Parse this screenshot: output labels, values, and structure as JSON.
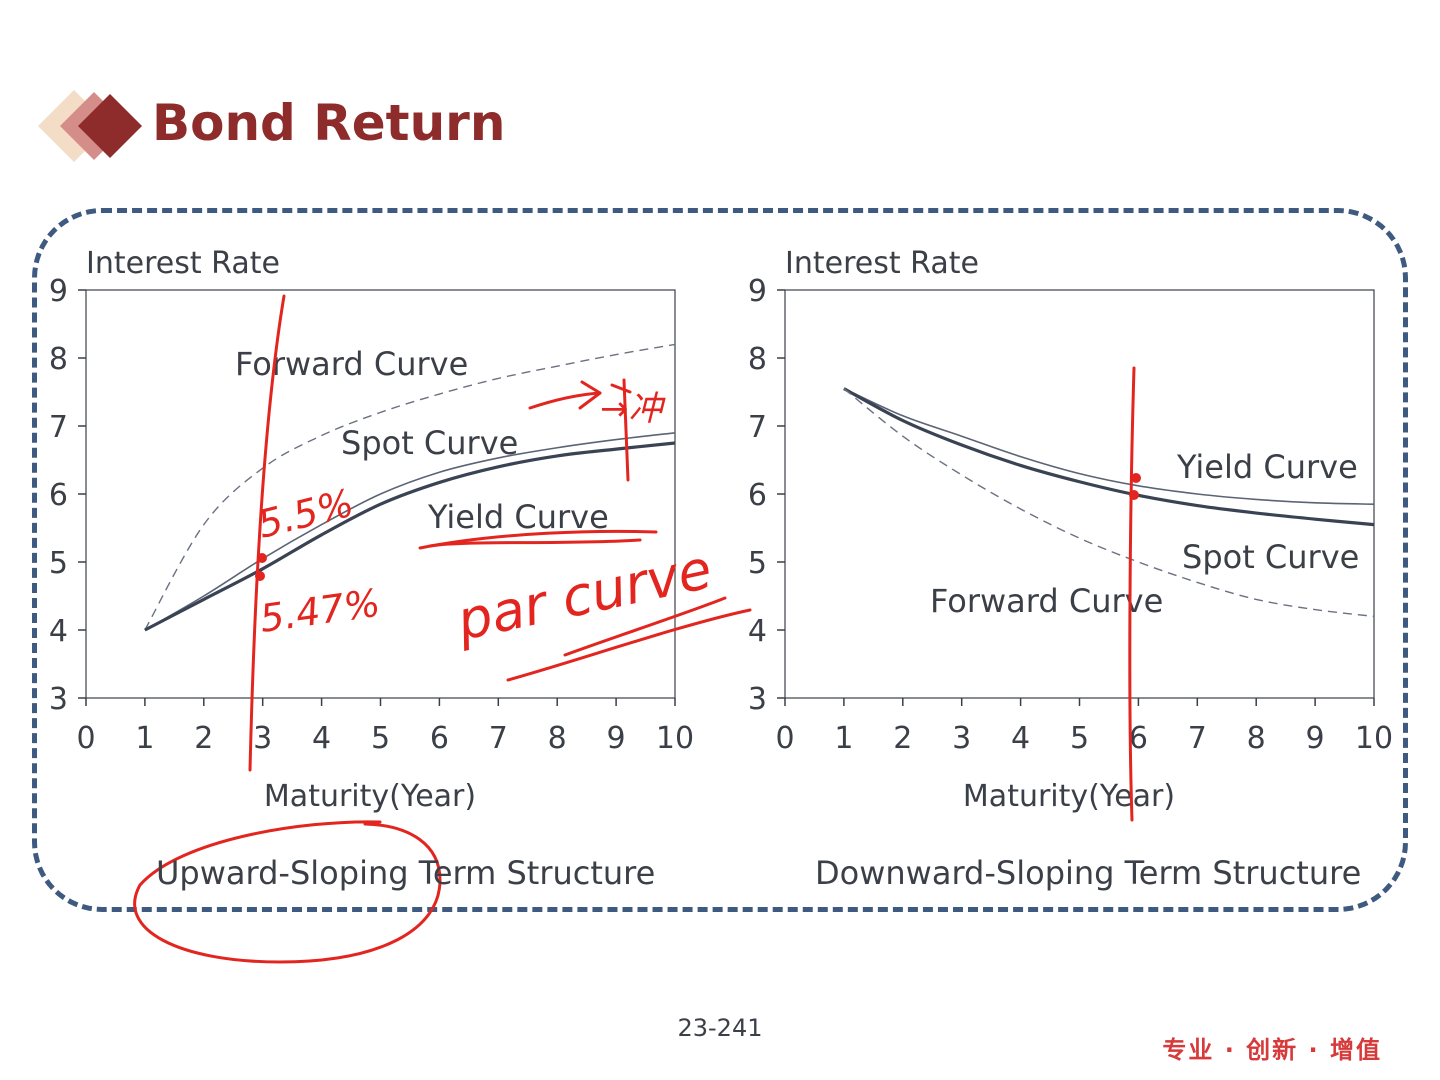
{
  "slide": {
    "title": "Bond Return",
    "page_number": "23-241",
    "slogan": "专业 · 创新 · 增值",
    "brand_color": "#8e2b2b",
    "frame_color": "#3e5a80"
  },
  "chart_data": [
    {
      "type": "line",
      "subtitle": "Upward-Sloping Term Structure",
      "xlabel": "Maturity(Year)",
      "ylabel": "Interest Rate",
      "xlim": [
        0,
        10
      ],
      "ylim": [
        3,
        9
      ],
      "x_ticks": [
        "0",
        "1",
        "2",
        "3",
        "4",
        "5",
        "6",
        "7",
        "8",
        "9",
        "10"
      ],
      "y_ticks": [
        "3",
        "4",
        "5",
        "6",
        "7",
        "8",
        "9"
      ],
      "grid": false,
      "series": [
        {
          "name": "Forward Curve",
          "style": "dashed",
          "x": [
            1,
            2,
            3,
            4,
            5,
            6,
            7,
            8,
            9,
            10
          ],
          "y": [
            4.0,
            5.55,
            6.38,
            6.86,
            7.2,
            7.47,
            7.7,
            7.88,
            8.05,
            8.2
          ]
        },
        {
          "name": "Spot Curve",
          "style": "thin",
          "x": [
            1,
            2,
            3,
            4,
            5,
            6,
            7,
            8,
            9,
            10
          ],
          "y": [
            4.0,
            4.5,
            5.05,
            5.55,
            6.0,
            6.32,
            6.53,
            6.68,
            6.8,
            6.9
          ]
        },
        {
          "name": "Yield Curve",
          "style": "thick",
          "x": [
            1,
            2,
            3,
            4,
            5,
            6,
            7,
            8,
            9,
            10
          ],
          "y": [
            4.0,
            4.45,
            4.9,
            5.4,
            5.85,
            6.17,
            6.4,
            6.56,
            6.66,
            6.75
          ]
        }
      ],
      "annotations": [
        "5.5%",
        "5.47%",
        "par curve",
        "→冲"
      ]
    },
    {
      "type": "line",
      "subtitle": "Downward-Sloping Term Structure",
      "xlabel": "Maturity(Year)",
      "ylabel": "Interest Rate",
      "xlim": [
        0,
        10
      ],
      "ylim": [
        3,
        9
      ],
      "x_ticks": [
        "0",
        "1",
        "2",
        "3",
        "4",
        "5",
        "6",
        "7",
        "8",
        "9",
        "10"
      ],
      "y_ticks": [
        "3",
        "4",
        "5",
        "6",
        "7",
        "8",
        "9"
      ],
      "grid": false,
      "series": [
        {
          "name": "Yield Curve",
          "style": "thin",
          "x": [
            1,
            2,
            3,
            4,
            5,
            6,
            7,
            8,
            9,
            10
          ],
          "y": [
            7.55,
            7.15,
            6.85,
            6.55,
            6.3,
            6.12,
            6.0,
            5.92,
            5.87,
            5.85
          ]
        },
        {
          "name": "Spot Curve",
          "style": "thick",
          "x": [
            1,
            2,
            3,
            4,
            5,
            6,
            7,
            8,
            9,
            10
          ],
          "y": [
            7.55,
            7.08,
            6.72,
            6.42,
            6.18,
            5.98,
            5.83,
            5.72,
            5.63,
            5.55
          ]
        },
        {
          "name": "Forward Curve",
          "style": "dashed",
          "x": [
            1,
            2,
            3,
            4,
            5,
            6,
            7,
            8,
            9,
            10
          ],
          "y": [
            7.55,
            6.85,
            6.28,
            5.78,
            5.35,
            5.0,
            4.7,
            4.45,
            4.3,
            4.2
          ]
        }
      ],
      "annotations": []
    }
  ]
}
